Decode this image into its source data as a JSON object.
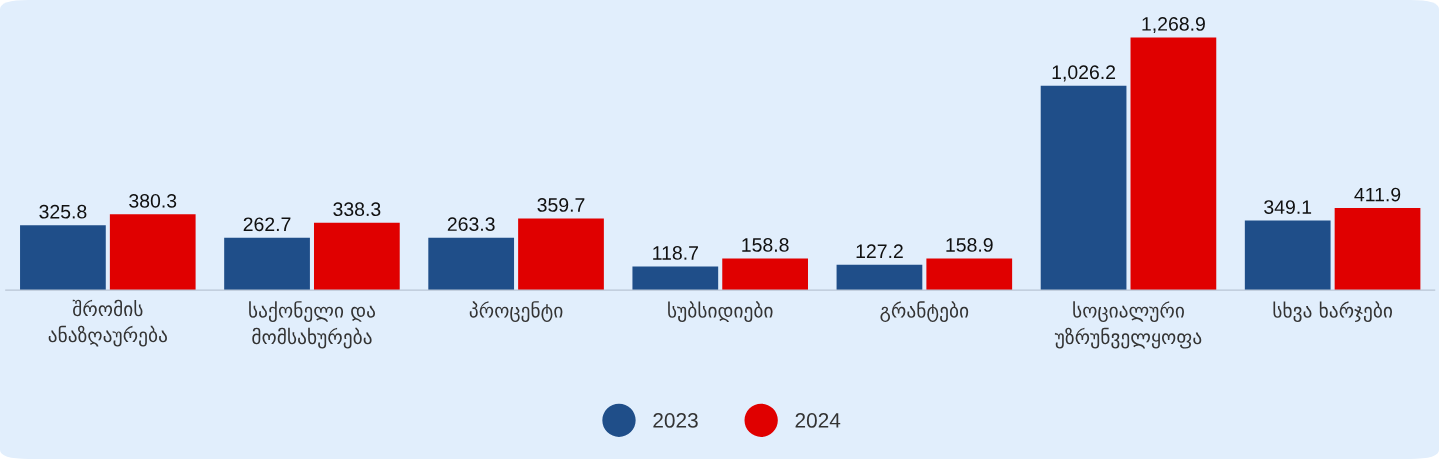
{
  "chart_data": {
    "type": "bar",
    "categories": [
      "შრომის\nანაზღაურება",
      "საქონელი და\nმომსახურება",
      "პროცენტი",
      "სუბსიდიები",
      "გრანტები",
      "სოციალური\nუზრუნველყოფა",
      "სხვა ხარჯები"
    ],
    "series": [
      {
        "name": "2023",
        "color": "#1f4e89",
        "values": [
          325.8,
          262.7,
          263.3,
          118.7,
          127.2,
          1026.2,
          349.1
        ],
        "value_labels": [
          "325.8",
          "262.7",
          "263.3",
          "118.7",
          "127.2",
          "1,026.2",
          "349.1"
        ]
      },
      {
        "name": "2024",
        "color": "#e00000",
        "values": [
          380.3,
          338.3,
          359.7,
          158.8,
          158.9,
          1268.9,
          411.9
        ],
        "value_labels": [
          "380.3",
          "338.3",
          "359.7",
          "158.8",
          "158.9",
          "1,268.9",
          "411.9"
        ]
      }
    ],
    "legend": "bottom",
    "grid": false
  }
}
